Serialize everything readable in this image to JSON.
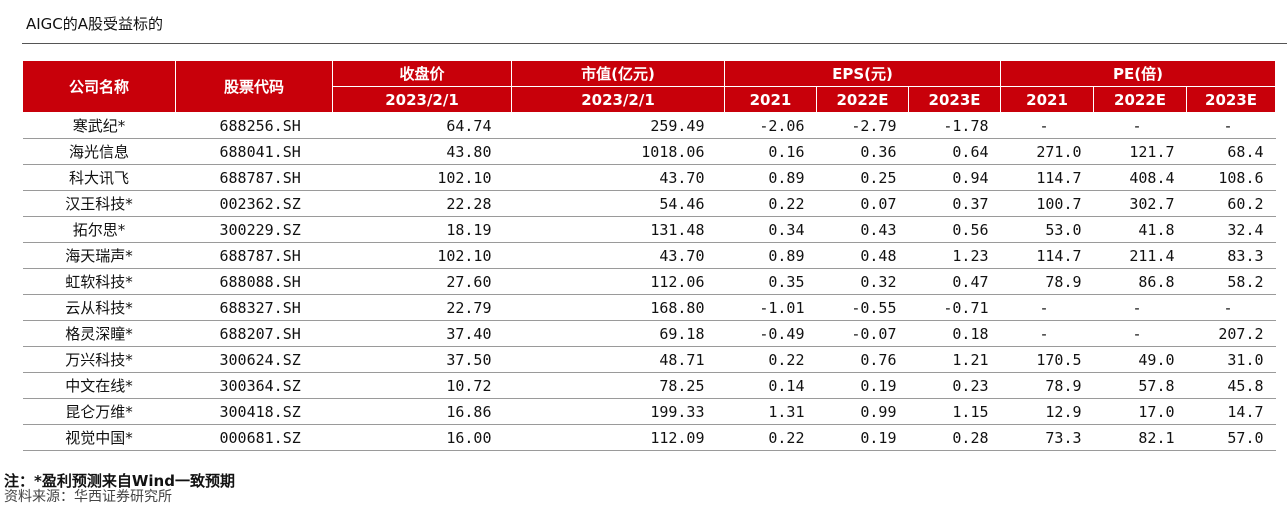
{
  "title": "AIGC的A股受益标的",
  "headers": {
    "company": "公司名称",
    "code": "股票代码",
    "close": "收盘价",
    "mktcap": "市值(亿元)",
    "eps": "EPS(元)",
    "pe": "PE(倍)",
    "date": "2023/2/1",
    "y2021": "2021",
    "y2022": "2022E",
    "y2023": "2023E"
  },
  "rows": [
    {
      "name": "寒武纪*",
      "code": "688256.SH",
      "close": "64.74",
      "cap": "259.49",
      "eps21": "-2.06",
      "eps22": "-2.79",
      "eps23": "-1.78",
      "pe21": "-",
      "pe22": "-",
      "pe23": "-"
    },
    {
      "name": "海光信息",
      "code": "688041.SH",
      "close": "43.80",
      "cap": "1018.06",
      "eps21": "0.16",
      "eps22": "0.36",
      "eps23": "0.64",
      "pe21": "271.0",
      "pe22": "121.7",
      "pe23": "68.4"
    },
    {
      "name": "科大讯飞",
      "code": "688787.SH",
      "close": "102.10",
      "cap": "43.70",
      "eps21": "0.89",
      "eps22": "0.25",
      "eps23": "0.94",
      "pe21": "114.7",
      "pe22": "408.4",
      "pe23": "108.6"
    },
    {
      "name": "汉王科技*",
      "code": "002362.SZ",
      "close": "22.28",
      "cap": "54.46",
      "eps21": "0.22",
      "eps22": "0.07",
      "eps23": "0.37",
      "pe21": "100.7",
      "pe22": "302.7",
      "pe23": "60.2"
    },
    {
      "name": "拓尔思*",
      "code": "300229.SZ",
      "close": "18.19",
      "cap": "131.48",
      "eps21": "0.34",
      "eps22": "0.43",
      "eps23": "0.56",
      "pe21": "53.0",
      "pe22": "41.8",
      "pe23": "32.4"
    },
    {
      "name": "海天瑞声*",
      "code": "688787.SH",
      "close": "102.10",
      "cap": "43.70",
      "eps21": "0.89",
      "eps22": "0.48",
      "eps23": "1.23",
      "pe21": "114.7",
      "pe22": "211.4",
      "pe23": "83.3"
    },
    {
      "name": "虹软科技*",
      "code": "688088.SH",
      "close": "27.60",
      "cap": "112.06",
      "eps21": "0.35",
      "eps22": "0.32",
      "eps23": "0.47",
      "pe21": "78.9",
      "pe22": "86.8",
      "pe23": "58.2"
    },
    {
      "name": "云从科技*",
      "code": "688327.SH",
      "close": "22.79",
      "cap": "168.80",
      "eps21": "-1.01",
      "eps22": "-0.55",
      "eps23": "-0.71",
      "pe21": "-",
      "pe22": "-",
      "pe23": "-"
    },
    {
      "name": "格灵深瞳*",
      "code": "688207.SH",
      "close": "37.40",
      "cap": "69.18",
      "eps21": "-0.49",
      "eps22": "-0.07",
      "eps23": "0.18",
      "pe21": "-",
      "pe22": "-",
      "pe23": "207.2"
    },
    {
      "name": "万兴科技*",
      "code": "300624.SZ",
      "close": "37.50",
      "cap": "48.71",
      "eps21": "0.22",
      "eps22": "0.76",
      "eps23": "1.21",
      "pe21": "170.5",
      "pe22": "49.0",
      "pe23": "31.0"
    },
    {
      "name": "中文在线*",
      "code": "300364.SZ",
      "close": "10.72",
      "cap": "78.25",
      "eps21": "0.14",
      "eps22": "0.19",
      "eps23": "0.23",
      "pe21": "78.9",
      "pe22": "57.8",
      "pe23": "45.8"
    },
    {
      "name": "昆仑万维*",
      "code": "300418.SZ",
      "close": "16.86",
      "cap": "199.33",
      "eps21": "1.31",
      "eps22": "0.99",
      "eps23": "1.15",
      "pe21": "12.9",
      "pe22": "17.0",
      "pe23": "14.7"
    },
    {
      "name": "视觉中国*",
      "code": "000681.SZ",
      "close": "16.00",
      "cap": "112.09",
      "eps21": "0.22",
      "eps22": "0.19",
      "eps23": "0.28",
      "pe21": "73.3",
      "pe22": "82.1",
      "pe23": "57.0"
    }
  ],
  "note": "注：*盈利预测来自Wind一致预期",
  "source": "资料来源：华西证券研究所"
}
